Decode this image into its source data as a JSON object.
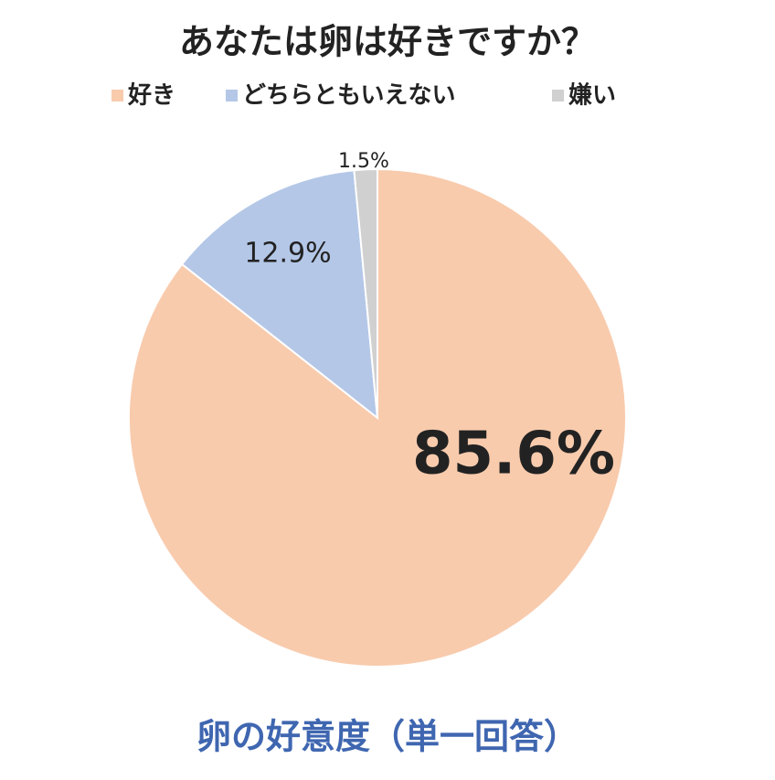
{
  "chart_data": {
    "type": "pie",
    "title": "あなたは卵は好きですか？",
    "caption": "卵の好意度（単一回答）",
    "categories": [
      "好き",
      "どちらともいえない",
      "嫌い"
    ],
    "values": [
      85.6,
      12.9,
      1.5
    ],
    "value_labels": [
      "85.6%",
      "12.9%",
      "1.5%"
    ],
    "colors": [
      "#f8cbad",
      "#b4c7e7",
      "#d0d0d0"
    ],
    "legend": "top"
  }
}
